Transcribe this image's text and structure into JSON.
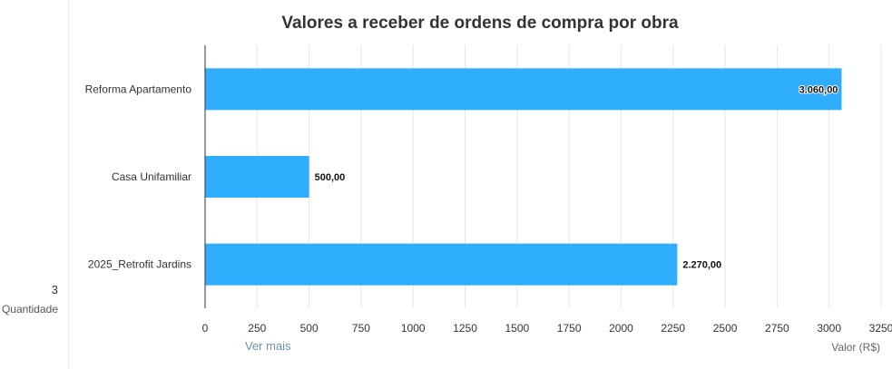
{
  "summary": {
    "count_value": "3",
    "count_label": "Quantidade",
    "see_more_label": "Ver mais"
  },
  "chart_data": {
    "type": "bar",
    "orientation": "horizontal",
    "title": "Valores a receber de ordens de compra por obra",
    "xlabel": "Valor (R$)",
    "ylabel": "",
    "categories": [
      "Reforma Apartamento",
      "Casa Unifamiliar",
      "2025_Retrofit Jardins"
    ],
    "values": [
      3060,
      500,
      2270
    ],
    "data_labels": [
      "3.060,00",
      "500,00",
      "2.270,00"
    ],
    "xlim": [
      0,
      3250
    ],
    "xticks": [
      0,
      250,
      500,
      750,
      1000,
      1250,
      1500,
      1750,
      2000,
      2250,
      2500,
      2750,
      3000,
      3250
    ],
    "grid": true,
    "legend": "none",
    "colors": {
      "bar": "#2eaefc",
      "grid": "#e6e6e6",
      "axis": "#333333"
    }
  }
}
